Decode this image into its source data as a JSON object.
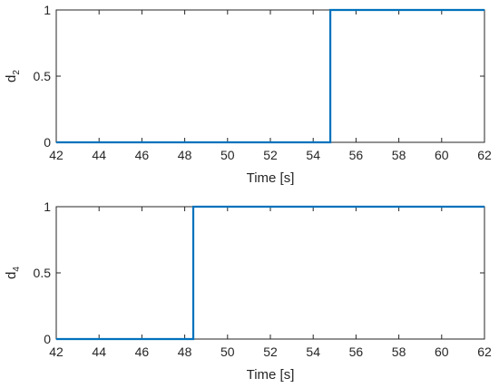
{
  "colors": {
    "series": "#0072BD"
  },
  "chart_data": [
    {
      "type": "line",
      "xlabel": "Time [s]",
      "ylabel": {
        "base": "d",
        "subscript": "2"
      },
      "xlim": [
        42,
        62
      ],
      "ylim": [
        0,
        1
      ],
      "xticks": [
        "42",
        "44",
        "46",
        "48",
        "50",
        "52",
        "54",
        "56",
        "58",
        "60",
        "62"
      ],
      "yticks": [
        "0",
        "0.5",
        "1"
      ],
      "grid": false,
      "series": [
        {
          "x": [
            42,
            54.8,
            54.8,
            62
          ],
          "y": [
            0,
            0,
            1,
            1
          ]
        }
      ]
    },
    {
      "type": "line",
      "xlabel": "Time [s]",
      "ylabel": {
        "base": "d",
        "subscript": "4"
      },
      "xlim": [
        42,
        62
      ],
      "ylim": [
        0,
        1
      ],
      "xticks": [
        "42",
        "44",
        "46",
        "48",
        "50",
        "52",
        "54",
        "56",
        "58",
        "60",
        "62"
      ],
      "yticks": [
        "0",
        "0.5",
        "1"
      ],
      "grid": false,
      "series": [
        {
          "x": [
            42,
            48.4,
            48.4,
            62
          ],
          "y": [
            0,
            0,
            1,
            1
          ]
        }
      ]
    }
  ]
}
